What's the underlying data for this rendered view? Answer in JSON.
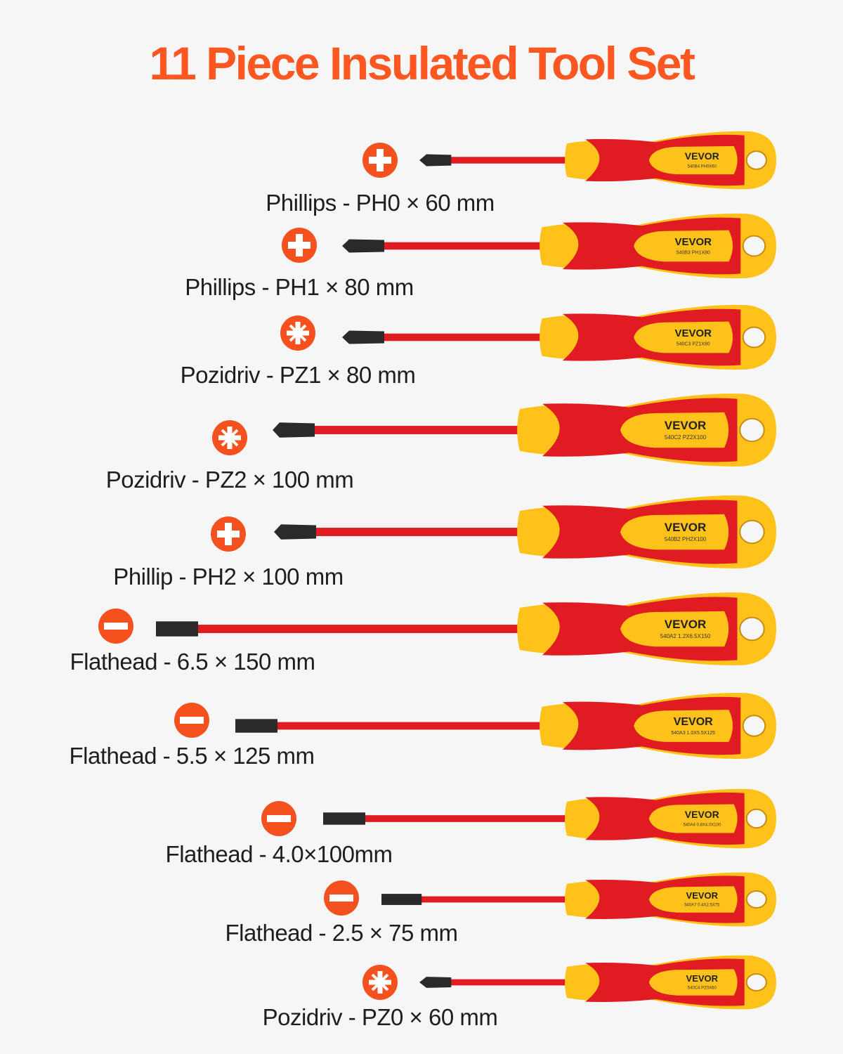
{
  "title": "11 Piece Insulated Tool Set",
  "colors": {
    "accent": "#ff5722",
    "icon": "#f4511e",
    "handle_red": "#e01b22",
    "handle_yellow": "#ffc21a",
    "tip": "#2a2a2a"
  },
  "brand": "VEVOR",
  "tools": [
    {
      "label": "Phillips - PH0 × 60 mm",
      "tip_type": "phillips",
      "icon": "phillips-cross-icon",
      "code": "540B4  PH0X60"
    },
    {
      "label": "Phillips - PH1 × 80 mm",
      "tip_type": "phillips",
      "icon": "phillips-cross-icon",
      "code": "540B3  PH1X80"
    },
    {
      "label": "Pozidriv - PZ1 × 80 mm",
      "tip_type": "pozidriv",
      "icon": "pozidriv-star-icon",
      "code": "540C3  PZ1X80"
    },
    {
      "label": "Pozidriv - PZ2 × 100 mm",
      "tip_type": "pozidriv",
      "icon": "pozidriv-star-icon",
      "code": "540C2  PZ2X100"
    },
    {
      "label": "Phillip - PH2 × 100 mm",
      "tip_type": "phillips",
      "icon": "phillips-cross-icon",
      "code": "540B2  PH2X100"
    },
    {
      "label": "Flathead - 6.5 × 150 mm",
      "tip_type": "flat",
      "icon": "flathead-slot-icon",
      "code": "540A2  1.2X6.5X150"
    },
    {
      "label": "Flathead - 5.5 × 125 mm",
      "tip_type": "flat",
      "icon": "flathead-slot-icon",
      "code": "540A3  1.0X5.5X125"
    },
    {
      "label": "Flathead - 4.0×100mm",
      "tip_type": "flat",
      "icon": "flathead-slot-icon",
      "code": "540A4  0.8X4.0X100"
    },
    {
      "label": "Flathead - 2.5 × 75 mm",
      "tip_type": "flat",
      "icon": "flathead-slot-icon",
      "code": "540A7  0.4X2.5X75"
    },
    {
      "label": "Pozidriv - PZ0 × 60 mm",
      "tip_type": "pozidriv",
      "icon": "pozidriv-star-icon",
      "code": "540C4  PZ0X60"
    }
  ]
}
